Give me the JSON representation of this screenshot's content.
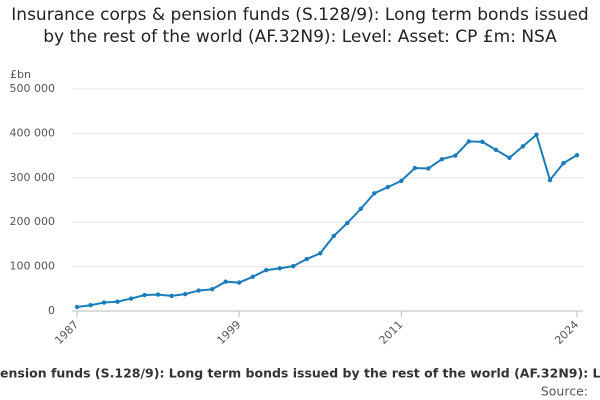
{
  "chart_data": {
    "type": "line",
    "title": "Insurance corps & pension funds (S.128/9): Long term bonds issued by the rest of the world (AF.32N9): Level: Asset: CP £m: NSA",
    "y_label": "£bn",
    "footer": "ension funds (S.128/9): Long term bonds issued by the rest of the world (AF.32N9): Le",
    "source": "Source:",
    "x": [
      1987,
      1988,
      1989,
      1990,
      1991,
      1992,
      1993,
      1994,
      1995,
      1996,
      1997,
      1998,
      1999,
      2000,
      2001,
      2002,
      2003,
      2004,
      2005,
      2006,
      2007,
      2008,
      2009,
      2010,
      2011,
      2012,
      2013,
      2014,
      2015,
      2016,
      2017,
      2018,
      2019,
      2020,
      2021,
      2022,
      2023,
      2024
    ],
    "series": [
      {
        "color": "#1a7dba",
        "values": [
          9000,
          13000,
          19000,
          21000,
          28000,
          36000,
          37000,
          34000,
          38000,
          46000,
          49000,
          66000,
          64000,
          77000,
          92000,
          96000,
          101000,
          117000,
          130000,
          169000,
          198000,
          230000,
          265000,
          279000,
          293000,
          322000,
          321000,
          342000,
          350000,
          382000,
          381000,
          363000,
          345000,
          371000,
          397000,
          295000,
          333000,
          351000
        ]
      }
    ],
    "xlim": [
      1987,
      2024
    ],
    "xticks": [
      1987,
      1999,
      2011,
      2024
    ],
    "ylim": [
      0,
      500000
    ],
    "yticks": [
      0,
      {
        "value": 100000,
        "label": "100 000"
      },
      {
        "value": 200000,
        "label": "200 000"
      },
      {
        "value": 300000,
        "label": "300 000"
      },
      {
        "value": 400000,
        "label": "400 000"
      },
      {
        "value": 500000,
        "label": "500 000"
      }
    ],
    "grid": true
  }
}
